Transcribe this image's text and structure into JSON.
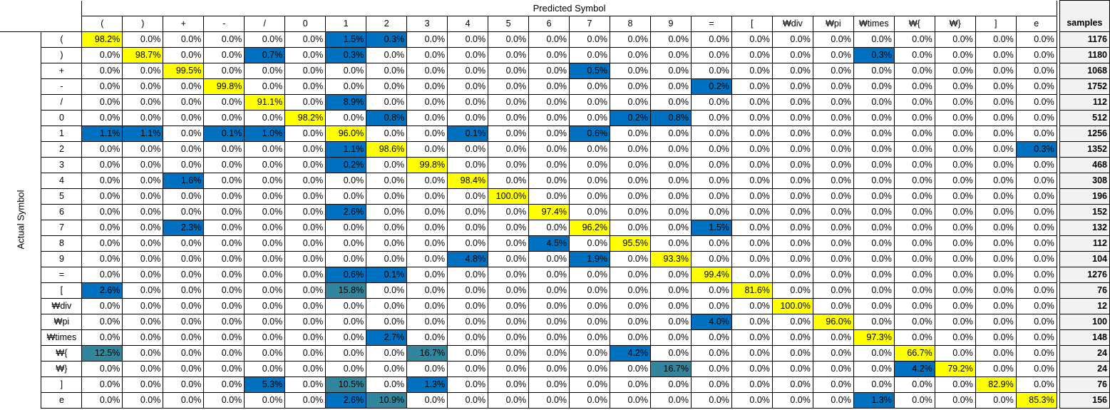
{
  "chart_data": {
    "type": "heatmap",
    "title": "Predicted Symbol",
    "xlabel": "Predicted Symbol",
    "ylabel": "Actual Symbol",
    "samples_label": "samples",
    "labels": [
      "(",
      ")",
      "+",
      "-",
      "/",
      "0",
      "1",
      "2",
      "3",
      "4",
      "5",
      "6",
      "7",
      "8",
      "9",
      "=",
      "[",
      "₩div",
      "₩pi",
      "₩times",
      "₩{",
      "₩}",
      "]",
      "e"
    ],
    "values": [
      [
        "98.2%",
        "0.0%",
        "0.0%",
        "0.0%",
        "0.0%",
        "0.0%",
        "1.5%",
        "0.3%",
        "0.0%",
        "0.0%",
        "0.0%",
        "0.0%",
        "0.0%",
        "0.0%",
        "0.0%",
        "0.0%",
        "0.0%",
        "0.0%",
        "0.0%",
        "0.0%",
        "0.0%",
        "0.0%",
        "0.0%",
        "0.0%"
      ],
      [
        "0.0%",
        "98.7%",
        "0.0%",
        "0.0%",
        "0.7%",
        "0.0%",
        "0.3%",
        "0.0%",
        "0.0%",
        "0.0%",
        "0.0%",
        "0.0%",
        "0.0%",
        "0.0%",
        "0.0%",
        "0.0%",
        "0.0%",
        "0.0%",
        "0.0%",
        "0.3%",
        "0.0%",
        "0.0%",
        "0.0%",
        "0.0%"
      ],
      [
        "0.0%",
        "0.0%",
        "99.5%",
        "0.0%",
        "0.0%",
        "0.0%",
        "0.0%",
        "0.0%",
        "0.0%",
        "0.0%",
        "0.0%",
        "0.0%",
        "0.5%",
        "0.0%",
        "0.0%",
        "0.0%",
        "0.0%",
        "0.0%",
        "0.0%",
        "0.0%",
        "0.0%",
        "0.0%",
        "0.0%",
        "0.0%"
      ],
      [
        "0.0%",
        "0.0%",
        "0.0%",
        "99.8%",
        "0.0%",
        "0.0%",
        "0.0%",
        "0.0%",
        "0.0%",
        "0.0%",
        "0.0%",
        "0.0%",
        "0.0%",
        "0.0%",
        "0.0%",
        "0.2%",
        "0.0%",
        "0.0%",
        "0.0%",
        "0.0%",
        "0.0%",
        "0.0%",
        "0.0%",
        "0.0%"
      ],
      [
        "0.0%",
        "0.0%",
        "0.0%",
        "0.0%",
        "91.1%",
        "0.0%",
        "8.9%",
        "0.0%",
        "0.0%",
        "0.0%",
        "0.0%",
        "0.0%",
        "0.0%",
        "0.0%",
        "0.0%",
        "0.0%",
        "0.0%",
        "0.0%",
        "0.0%",
        "0.0%",
        "0.0%",
        "0.0%",
        "0.0%",
        "0.0%"
      ],
      [
        "0.0%",
        "0.0%",
        "0.0%",
        "0.0%",
        "0.0%",
        "98.2%",
        "0.0%",
        "0.8%",
        "0.0%",
        "0.0%",
        "0.0%",
        "0.0%",
        "0.0%",
        "0.2%",
        "0.8%",
        "0.0%",
        "0.0%",
        "0.0%",
        "0.0%",
        "0.0%",
        "0.0%",
        "0.0%",
        "0.0%",
        "0.0%"
      ],
      [
        "1.1%",
        "1.1%",
        "0.0%",
        "0.1%",
        "1.0%",
        "0.0%",
        "96.0%",
        "0.0%",
        "0.0%",
        "0.1%",
        "0.0%",
        "0.0%",
        "0.6%",
        "0.0%",
        "0.0%",
        "0.0%",
        "0.0%",
        "0.0%",
        "0.0%",
        "0.0%",
        "0.0%",
        "0.0%",
        "0.0%",
        "0.0%"
      ],
      [
        "0.0%",
        "0.0%",
        "0.0%",
        "0.0%",
        "0.0%",
        "0.0%",
        "1.1%",
        "98.6%",
        "0.0%",
        "0.0%",
        "0.0%",
        "0.0%",
        "0.0%",
        "0.0%",
        "0.0%",
        "0.0%",
        "0.0%",
        "0.0%",
        "0.0%",
        "0.0%",
        "0.0%",
        "0.0%",
        "0.0%",
        "0.3%"
      ],
      [
        "0.0%",
        "0.0%",
        "0.0%",
        "0.0%",
        "0.0%",
        "0.0%",
        "0.2%",
        "0.0%",
        "99.8%",
        "0.0%",
        "0.0%",
        "0.0%",
        "0.0%",
        "0.0%",
        "0.0%",
        "0.0%",
        "0.0%",
        "0.0%",
        "0.0%",
        "0.0%",
        "0.0%",
        "0.0%",
        "0.0%",
        "0.0%"
      ],
      [
        "0.0%",
        "0.0%",
        "1.6%",
        "0.0%",
        "0.0%",
        "0.0%",
        "0.0%",
        "0.0%",
        "0.0%",
        "98.4%",
        "0.0%",
        "0.0%",
        "0.0%",
        "0.0%",
        "0.0%",
        "0.0%",
        "0.0%",
        "0.0%",
        "0.0%",
        "0.0%",
        "0.0%",
        "0.0%",
        "0.0%",
        "0.0%"
      ],
      [
        "0.0%",
        "0.0%",
        "0.0%",
        "0.0%",
        "0.0%",
        "0.0%",
        "0.0%",
        "0.0%",
        "0.0%",
        "0.0%",
        "100.0%",
        "0.0%",
        "0.0%",
        "0.0%",
        "0.0%",
        "0.0%",
        "0.0%",
        "0.0%",
        "0.0%",
        "0.0%",
        "0.0%",
        "0.0%",
        "0.0%",
        "0.0%"
      ],
      [
        "0.0%",
        "0.0%",
        "0.0%",
        "0.0%",
        "0.0%",
        "0.0%",
        "2.6%",
        "0.0%",
        "0.0%",
        "0.0%",
        "0.0%",
        "97.4%",
        "0.0%",
        "0.0%",
        "0.0%",
        "0.0%",
        "0.0%",
        "0.0%",
        "0.0%",
        "0.0%",
        "0.0%",
        "0.0%",
        "0.0%",
        "0.0%"
      ],
      [
        "0.0%",
        "0.0%",
        "2.3%",
        "0.0%",
        "0.0%",
        "0.0%",
        "0.0%",
        "0.0%",
        "0.0%",
        "0.0%",
        "0.0%",
        "0.0%",
        "96.2%",
        "0.0%",
        "0.0%",
        "1.5%",
        "0.0%",
        "0.0%",
        "0.0%",
        "0.0%",
        "0.0%",
        "0.0%",
        "0.0%",
        "0.0%"
      ],
      [
        "0.0%",
        "0.0%",
        "0.0%",
        "0.0%",
        "0.0%",
        "0.0%",
        "0.0%",
        "0.0%",
        "0.0%",
        "0.0%",
        "0.0%",
        "4.5%",
        "0.0%",
        "95.5%",
        "0.0%",
        "0.0%",
        "0.0%",
        "0.0%",
        "0.0%",
        "0.0%",
        "0.0%",
        "0.0%",
        "0.0%",
        "0.0%"
      ],
      [
        "0.0%",
        "0.0%",
        "0.0%",
        "0.0%",
        "0.0%",
        "0.0%",
        "0.0%",
        "0.0%",
        "0.0%",
        "4.8%",
        "0.0%",
        "0.0%",
        "1.9%",
        "0.0%",
        "93.3%",
        "0.0%",
        "0.0%",
        "0.0%",
        "0.0%",
        "0.0%",
        "0.0%",
        "0.0%",
        "0.0%",
        "0.0%"
      ],
      [
        "0.0%",
        "0.0%",
        "0.0%",
        "0.0%",
        "0.0%",
        "0.0%",
        "0.6%",
        "0.1%",
        "0.0%",
        "0.0%",
        "0.0%",
        "0.0%",
        "0.0%",
        "0.0%",
        "0.0%",
        "99.4%",
        "0.0%",
        "0.0%",
        "0.0%",
        "0.0%",
        "0.0%",
        "0.0%",
        "0.0%",
        "0.0%"
      ],
      [
        "2.6%",
        "0.0%",
        "0.0%",
        "0.0%",
        "0.0%",
        "0.0%",
        "15.8%",
        "0.0%",
        "0.0%",
        "0.0%",
        "0.0%",
        "0.0%",
        "0.0%",
        "0.0%",
        "0.0%",
        "0.0%",
        "81.6%",
        "0.0%",
        "0.0%",
        "0.0%",
        "0.0%",
        "0.0%",
        "0.0%",
        "0.0%"
      ],
      [
        "0.0%",
        "0.0%",
        "0.0%",
        "0.0%",
        "0.0%",
        "0.0%",
        "0.0%",
        "0.0%",
        "0.0%",
        "0.0%",
        "0.0%",
        "0.0%",
        "0.0%",
        "0.0%",
        "0.0%",
        "0.0%",
        "0.0%",
        "100.0%",
        "0.0%",
        "0.0%",
        "0.0%",
        "0.0%",
        "0.0%",
        "0.0%"
      ],
      [
        "0.0%",
        "0.0%",
        "0.0%",
        "0.0%",
        "0.0%",
        "0.0%",
        "0.0%",
        "0.0%",
        "0.0%",
        "0.0%",
        "0.0%",
        "0.0%",
        "0.0%",
        "0.0%",
        "0.0%",
        "4.0%",
        "0.0%",
        "0.0%",
        "96.0%",
        "0.0%",
        "0.0%",
        "0.0%",
        "0.0%",
        "0.0%"
      ],
      [
        "0.0%",
        "0.0%",
        "0.0%",
        "0.0%",
        "0.0%",
        "0.0%",
        "0.0%",
        "2.7%",
        "0.0%",
        "0.0%",
        "0.0%",
        "0.0%",
        "0.0%",
        "0.0%",
        "0.0%",
        "0.0%",
        "0.0%",
        "0.0%",
        "0.0%",
        "97.3%",
        "0.0%",
        "0.0%",
        "0.0%",
        "0.0%"
      ],
      [
        "12.5%",
        "0.0%",
        "0.0%",
        "0.0%",
        "0.0%",
        "0.0%",
        "0.0%",
        "0.0%",
        "16.7%",
        "0.0%",
        "0.0%",
        "0.0%",
        "0.0%",
        "4.2%",
        "0.0%",
        "0.0%",
        "0.0%",
        "0.0%",
        "0.0%",
        "0.0%",
        "66.7%",
        "0.0%",
        "0.0%",
        "0.0%"
      ],
      [
        "0.0%",
        "0.0%",
        "0.0%",
        "0.0%",
        "0.0%",
        "0.0%",
        "0.0%",
        "0.0%",
        "0.0%",
        "0.0%",
        "0.0%",
        "0.0%",
        "0.0%",
        "0.0%",
        "16.7%",
        "0.0%",
        "0.0%",
        "0.0%",
        "0.0%",
        "0.0%",
        "4.2%",
        "79.2%",
        "0.0%",
        "0.0%"
      ],
      [
        "0.0%",
        "0.0%",
        "0.0%",
        "0.0%",
        "5.3%",
        "0.0%",
        "10.5%",
        "0.0%",
        "1.3%",
        "0.0%",
        "0.0%",
        "0.0%",
        "0.0%",
        "0.0%",
        "0.0%",
        "0.0%",
        "0.0%",
        "0.0%",
        "0.0%",
        "0.0%",
        "0.0%",
        "0.0%",
        "82.9%",
        "0.0%"
      ],
      [
        "0.0%",
        "0.0%",
        "0.0%",
        "0.0%",
        "0.0%",
        "0.0%",
        "2.6%",
        "10.9%",
        "0.0%",
        "0.0%",
        "0.0%",
        "0.0%",
        "0.0%",
        "0.0%",
        "0.0%",
        "0.0%",
        "0.0%",
        "0.0%",
        "0.0%",
        "1.3%",
        "0.0%",
        "0.0%",
        "0.0%",
        "85.3%"
      ]
    ],
    "samples": [
      1176,
      1180,
      1068,
      1752,
      112,
      512,
      1256,
      1352,
      468,
      308,
      196,
      152,
      132,
      112,
      104,
      1276,
      76,
      12,
      100,
      148,
      24,
      24,
      76,
      156
    ],
    "colors": {
      "diagonal": "#ffff00",
      "error": "#0070c0",
      "error_high": "#31859c",
      "samples_bg": "#f2f2f2"
    }
  }
}
